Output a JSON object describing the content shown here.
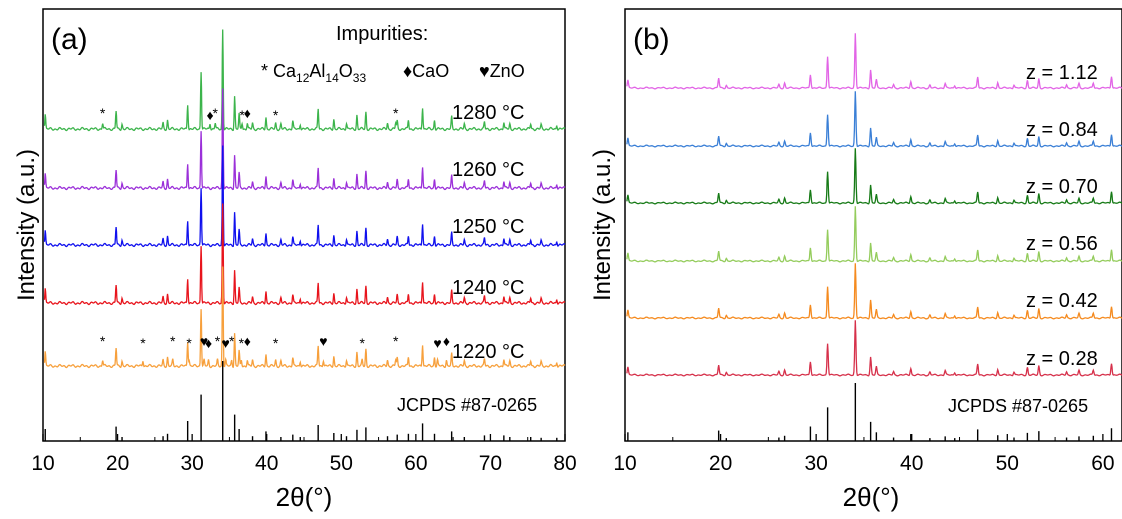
{
  "chart_data": [
    {
      "panel_label": "(a)",
      "type": "line",
      "xlabel": "2θ(°)",
      "ylabel": "Intensity (a.u.)",
      "xlim": [
        10,
        80
      ],
      "x_ticks": [
        10,
        20,
        30,
        40,
        50,
        60,
        70,
        80
      ],
      "grid": false,
      "legend_title": "Impurities:",
      "legend_items": [
        {
          "marker": "*",
          "label": "Ca12Al14O33"
        },
        {
          "marker": "♦",
          "label": "CaO"
        },
        {
          "marker": "♥",
          "label": "ZnO"
        }
      ],
      "series": [
        {
          "name": "1280 °C",
          "color": "#3cb44b",
          "annotations": [
            {
              "x": 18.0,
              "marker": "*"
            },
            {
              "x": 32.4,
              "marker": "♦"
            },
            {
              "x": 33.1,
              "marker": "*"
            },
            {
              "x": 36.7,
              "marker": "*"
            },
            {
              "x": 37.4,
              "marker": "♦"
            },
            {
              "x": 41.2,
              "marker": "*"
            },
            {
              "x": 57.3,
              "marker": "*"
            }
          ]
        },
        {
          "name": "1260 °C",
          "color": "#9b30d9",
          "annotations": []
        },
        {
          "name": "1250 °C",
          "color": "#1010ee",
          "annotations": []
        },
        {
          "name": "1240 °C",
          "color": "#e8141c",
          "annotations": []
        },
        {
          "name": "1220 °C",
          "color": "#f7a03c",
          "annotations": [
            {
              "x": 18.0,
              "marker": "*"
            },
            {
              "x": 23.4,
              "marker": "*"
            },
            {
              "x": 27.4,
              "marker": "*"
            },
            {
              "x": 29.6,
              "marker": "*"
            },
            {
              "x": 31.6,
              "marker": "♥"
            },
            {
              "x": 32.2,
              "marker": "♦"
            },
            {
              "x": 33.4,
              "marker": "*"
            },
            {
              "x": 34.5,
              "marker": "♥"
            },
            {
              "x": 35.3,
              "marker": "*"
            },
            {
              "x": 36.6,
              "marker": "*"
            },
            {
              "x": 37.4,
              "marker": "♦"
            },
            {
              "x": 41.2,
              "marker": "*"
            },
            {
              "x": 47.6,
              "marker": "♥"
            },
            {
              "x": 52.8,
              "marker": "*"
            },
            {
              "x": 57.3,
              "marker": "*"
            },
            {
              "x": 62.9,
              "marker": "♥"
            },
            {
              "x": 64.1,
              "marker": "♦"
            }
          ]
        }
      ],
      "reference": {
        "name": "JCPDS #87-0265",
        "color": "#000000"
      }
    },
    {
      "panel_label": "(b)",
      "type": "line",
      "xlabel": "2θ(°)",
      "ylabel": "Intensity (a.u.)",
      "xlim": [
        10,
        62
      ],
      "x_ticks": [
        10,
        20,
        30,
        40,
        50,
        60
      ],
      "grid": false,
      "series": [
        {
          "name": "z = 1.12",
          "color": "#e264e6"
        },
        {
          "name": "z = 0.84",
          "color": "#3a7fd6"
        },
        {
          "name": "z = 0.70",
          "color": "#167a16"
        },
        {
          "name": "z = 0.56",
          "color": "#94cc5c"
        },
        {
          "name": "z = 0.42",
          "color": "#f58a1e"
        },
        {
          "name": "z = 0.28",
          "color": "#d6304a"
        }
      ],
      "reference": {
        "name": "JCPDS #87-0265",
        "color": "#000000"
      }
    }
  ],
  "reference_peaks": [
    [
      10.3,
      0.15
    ],
    [
      19.8,
      0.18
    ],
    [
      20.6,
      0.05
    ],
    [
      26.1,
      0.06
    ],
    [
      26.7,
      0.09
    ],
    [
      29.4,
      0.25
    ],
    [
      31.2,
      0.58
    ],
    [
      34.1,
      1.0
    ],
    [
      35.7,
      0.33
    ],
    [
      36.3,
      0.15
    ],
    [
      38.1,
      0.06
    ],
    [
      39.9,
      0.12
    ],
    [
      41.9,
      0.05
    ],
    [
      43.5,
      0.08
    ],
    [
      44.5,
      0.05
    ],
    [
      46.9,
      0.2
    ],
    [
      49.0,
      0.1
    ],
    [
      50.7,
      0.06
    ],
    [
      52.1,
      0.14
    ],
    [
      53.3,
      0.17
    ],
    [
      56.2,
      0.06
    ],
    [
      57.5,
      0.08
    ],
    [
      59.0,
      0.09
    ],
    [
      60.9,
      0.22
    ],
    [
      62.5,
      0.09
    ],
    [
      64.8,
      0.12
    ],
    [
      66.5,
      0.05
    ],
    [
      69.2,
      0.07
    ],
    [
      71.8,
      0.07
    ],
    [
      72.6,
      0.05
    ],
    [
      75.4,
      0.05
    ],
    [
      76.8,
      0.04
    ],
    [
      78.9,
      0.04
    ]
  ]
}
